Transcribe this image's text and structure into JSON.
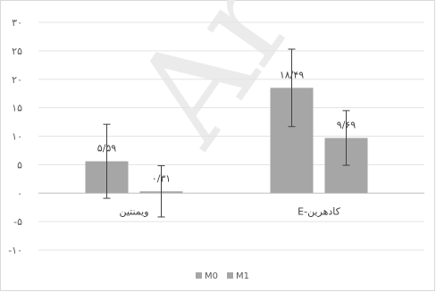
{
  "watermark": "Ar",
  "chart_data": {
    "type": "bar",
    "categories": [
      "ویمنتین",
      "E-کادهرین"
    ],
    "series": [
      {
        "name": "M0",
        "values": [
          5.59,
          18.49
        ],
        "error": [
          6.5,
          6.8
        ],
        "color": "#a6a6a6",
        "labels": [
          "۵/۵۹",
          "۱۸/۴۹"
        ]
      },
      {
        "name": "M1",
        "values": [
          0.31,
          9.69
        ],
        "error": [
          4.5,
          4.8
        ],
        "color": "#a6a6a6",
        "labels": [
          "۰/۳۱",
          "۹/۶۹"
        ]
      }
    ],
    "ylim": [
      -10,
      30
    ],
    "yticks": [
      30,
      25,
      20,
      15,
      10,
      5,
      0,
      -5,
      -10
    ],
    "ytick_labels": [
      "۳۰",
      "۲۵",
      "۲۰",
      "۱۵",
      "۱۰",
      "۵",
      "۰",
      "-۵",
      "-۱۰"
    ],
    "grid": true,
    "legend": "bottom",
    "title": "",
    "xlabel": "",
    "ylabel": ""
  }
}
